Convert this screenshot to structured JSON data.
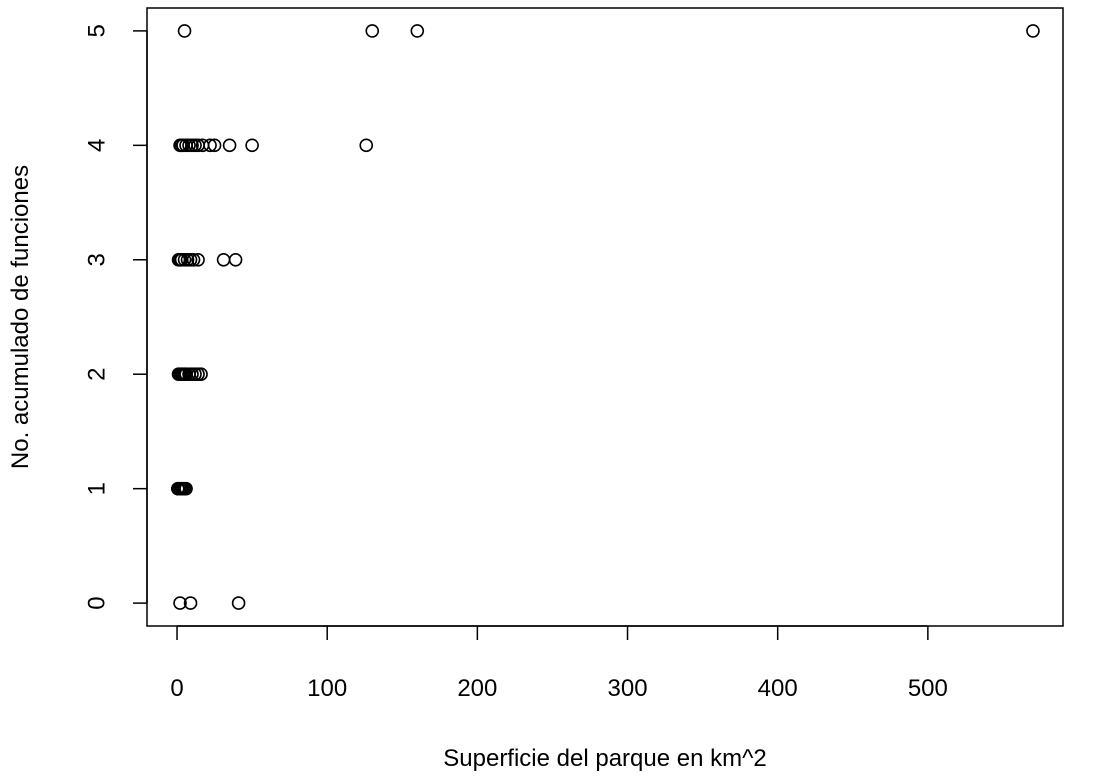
{
  "chart_data": {
    "type": "scatter",
    "title": "",
    "xlabel": "Superficie del parque en km^2",
    "ylabel": "No. acumulado de funciones",
    "xlim": [
      -20,
      590
    ],
    "ylim": [
      -0.2,
      5.2
    ],
    "x_ticks": [
      0,
      100,
      200,
      300,
      400,
      500
    ],
    "y_ticks": [
      0,
      1,
      2,
      3,
      4,
      5
    ],
    "grid": false,
    "legend": "none",
    "marker": "open-circle",
    "point_color": "#000000",
    "points": [
      {
        "x": 570,
        "y": 5
      },
      {
        "x": 160,
        "y": 5
      },
      {
        "x": 130,
        "y": 5
      },
      {
        "x": 5,
        "y": 5
      },
      {
        "x": 126,
        "y": 4
      },
      {
        "x": 50,
        "y": 4
      },
      {
        "x": 35,
        "y": 4
      },
      {
        "x": 25,
        "y": 4
      },
      {
        "x": 22,
        "y": 4
      },
      {
        "x": 17,
        "y": 4
      },
      {
        "x": 14,
        "y": 4
      },
      {
        "x": 12,
        "y": 4
      },
      {
        "x": 10,
        "y": 4
      },
      {
        "x": 8,
        "y": 4
      },
      {
        "x": 6,
        "y": 4
      },
      {
        "x": 4,
        "y": 4
      },
      {
        "x": 3,
        "y": 4
      },
      {
        "x": 2,
        "y": 4
      },
      {
        "x": 39,
        "y": 3
      },
      {
        "x": 31,
        "y": 3
      },
      {
        "x": 14,
        "y": 3
      },
      {
        "x": 11,
        "y": 3
      },
      {
        "x": 9,
        "y": 3
      },
      {
        "x": 7,
        "y": 3
      },
      {
        "x": 5,
        "y": 3
      },
      {
        "x": 3,
        "y": 3
      },
      {
        "x": 2,
        "y": 3
      },
      {
        "x": 1,
        "y": 3
      },
      {
        "x": 16,
        "y": 2
      },
      {
        "x": 14,
        "y": 2
      },
      {
        "x": 12,
        "y": 2
      },
      {
        "x": 10,
        "y": 2
      },
      {
        "x": 8,
        "y": 2
      },
      {
        "x": 6,
        "y": 2
      },
      {
        "x": 5,
        "y": 2
      },
      {
        "x": 4,
        "y": 2
      },
      {
        "x": 3,
        "y": 2
      },
      {
        "x": 2,
        "y": 2
      },
      {
        "x": 1,
        "y": 2
      },
      {
        "x": 6,
        "y": 1
      },
      {
        "x": 5,
        "y": 1
      },
      {
        "x": 4,
        "y": 1
      },
      {
        "x": 3,
        "y": 1
      },
      {
        "x": 2,
        "y": 1
      },
      {
        "x": 1,
        "y": 1
      },
      {
        "x": 0.5,
        "y": 1
      },
      {
        "x": 41,
        "y": 0
      },
      {
        "x": 9,
        "y": 0
      },
      {
        "x": 2,
        "y": 0
      }
    ]
  }
}
